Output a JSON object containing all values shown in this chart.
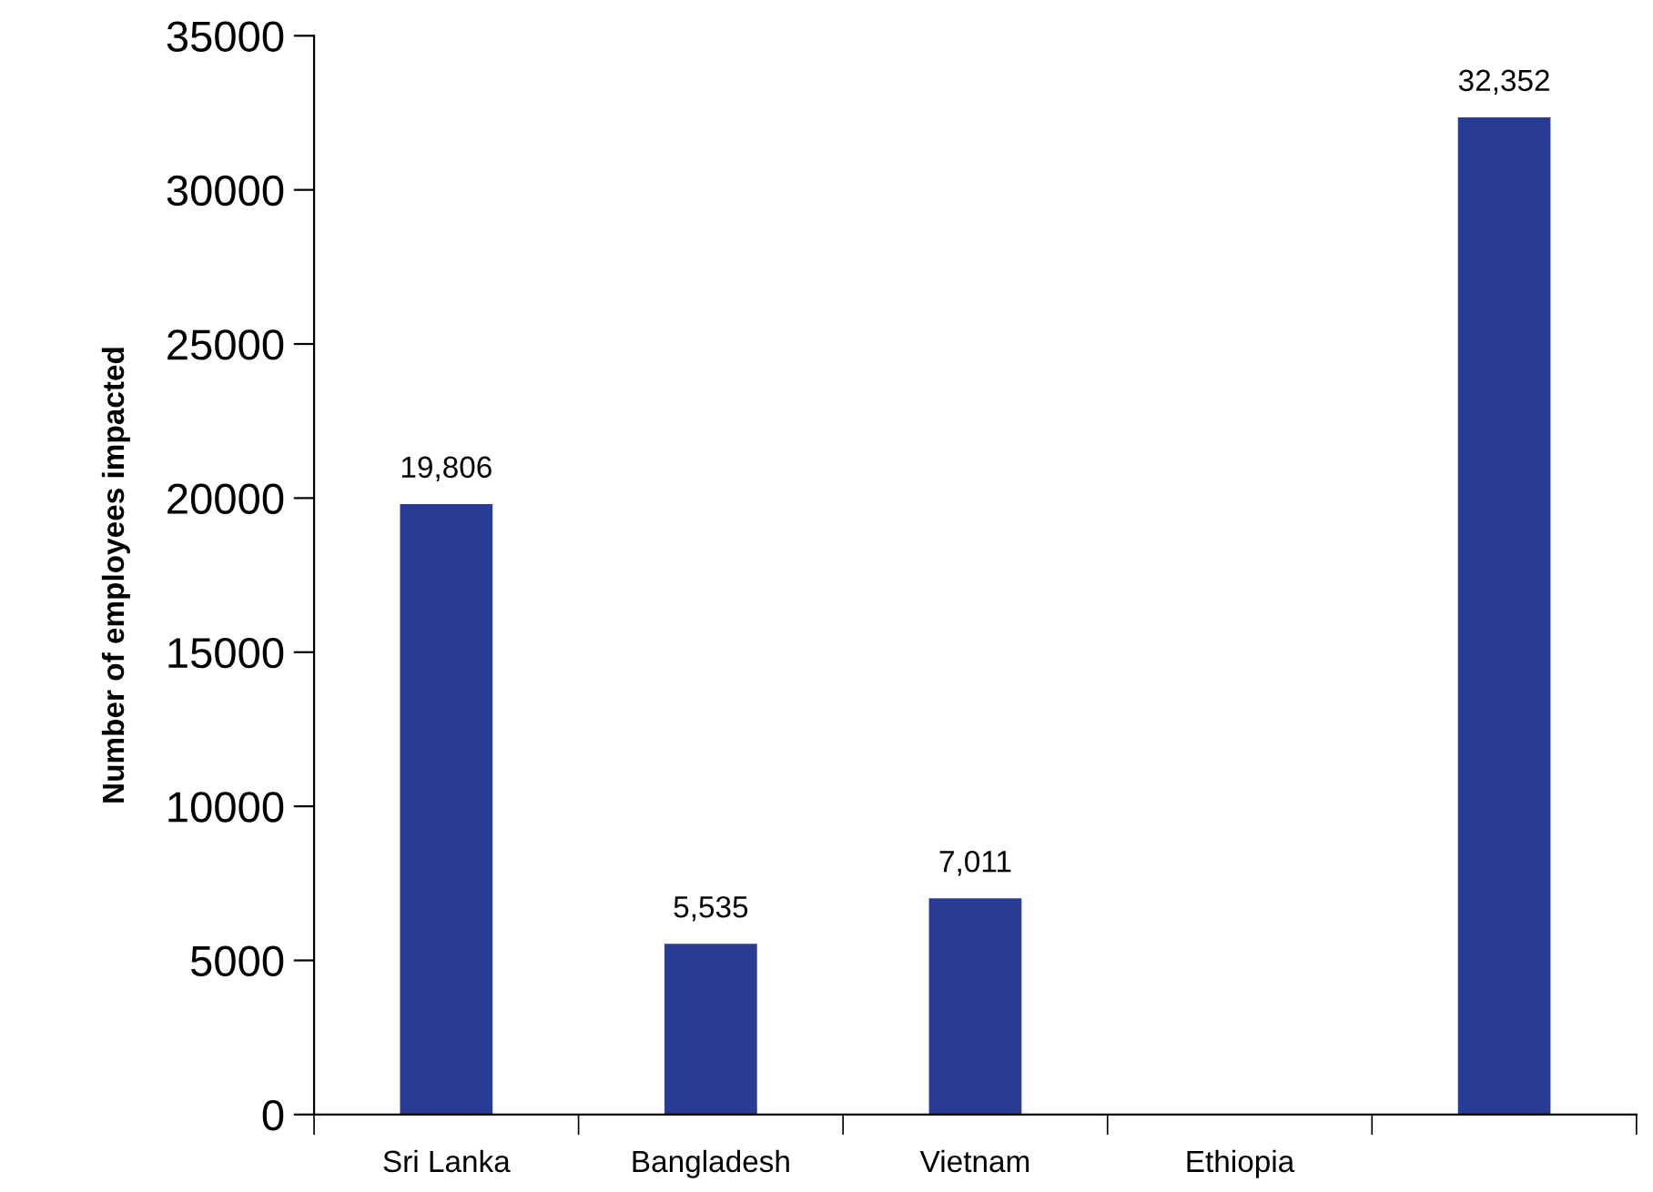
{
  "chart_data": {
    "type": "bar",
    "ylabel": "Number of employees impacted",
    "categories": [
      "Sri Lanka",
      "Bangladesh",
      "Vietnam",
      "Ethiopia",
      null
    ],
    "values": [
      19806,
      5535,
      7011,
      null,
      32352
    ],
    "value_labels": [
      "19,806",
      "5,535",
      "7,011",
      null,
      "32,352"
    ],
    "color": "#283c96",
    "ylim": [
      0,
      35000
    ],
    "yticks": [
      0,
      5000,
      10000,
      15000,
      20000,
      25000,
      30000,
      35000
    ],
    "grid": false
  }
}
